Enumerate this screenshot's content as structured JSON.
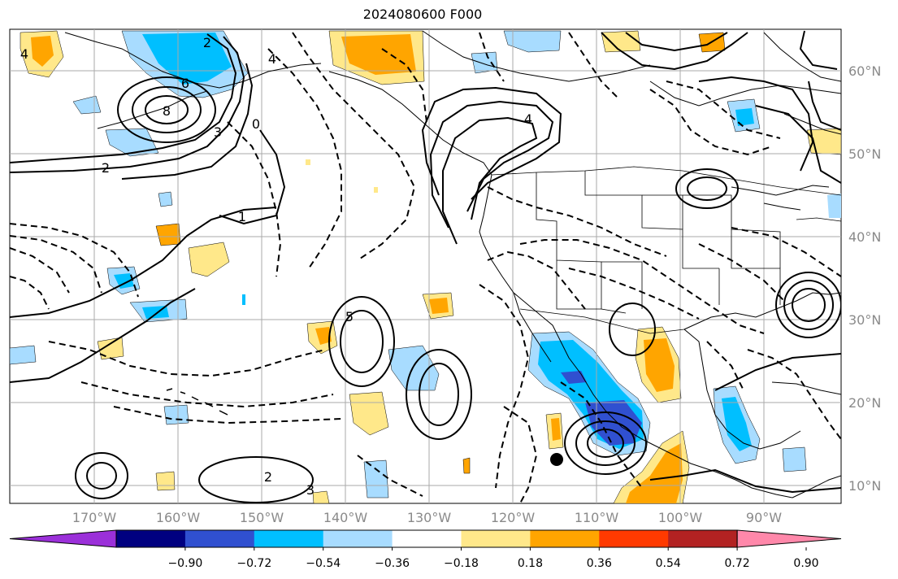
{
  "map": {
    "title": "2024080600 F000",
    "lat_labels": [
      "60°N",
      "50°N",
      "40°N",
      "30°N",
      "20°N",
      "10°N"
    ],
    "lon_labels": [
      "170°W",
      "160°W",
      "150°W",
      "140°W",
      "130°W",
      "120°W",
      "110°W",
      "100°W",
      "90°W"
    ],
    "contour_labels": [
      "4",
      "6",
      "8",
      "2",
      "3",
      "4",
      "2",
      "0",
      "1",
      "2",
      "3",
      "4",
      "5"
    ],
    "marker": "storm-center-dot"
  },
  "colorbar": {
    "ticks": [
      "−0.90",
      "−0.72",
      "−0.54",
      "−0.36",
      "−0.18",
      "0.18",
      "0.36",
      "0.54",
      "0.72",
      "0.90"
    ],
    "colors": [
      "#9b30d9",
      "#000080",
      "#3050d0",
      "#00bfff",
      "#a8dcff",
      "#ffffff",
      "#ffe88a",
      "#ffa500",
      "#ff3a00",
      "#b22222",
      "#ff88aa"
    ]
  },
  "colors": {
    "grid": "#aaaaaa",
    "coast": "#000000",
    "neg_strong": "#00bfff",
    "neg_weak": "#a8dcff",
    "pos_weak": "#ffe88a",
    "pos_mid": "#ffa500"
  }
}
